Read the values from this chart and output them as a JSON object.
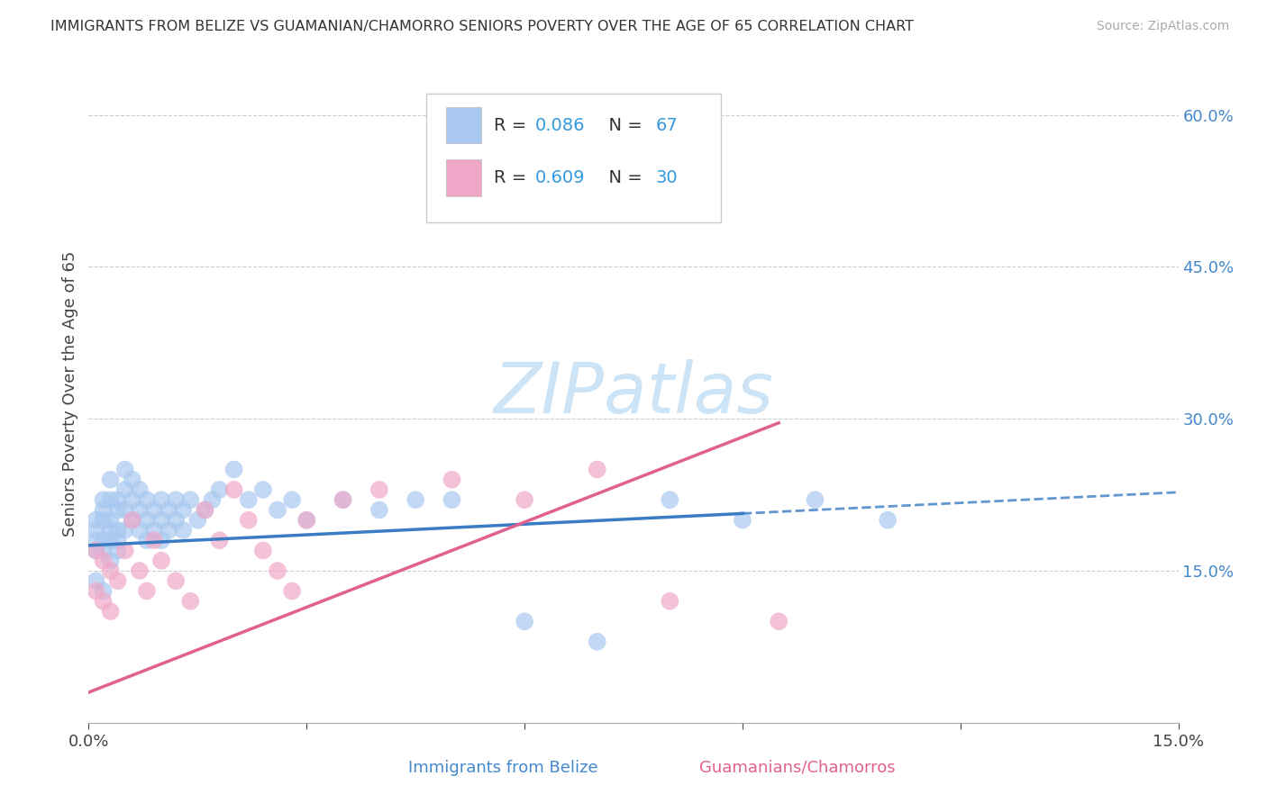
{
  "title": "IMMIGRANTS FROM BELIZE VS GUAMANIAN/CHAMORRO SENIORS POVERTY OVER THE AGE OF 65 CORRELATION CHART",
  "source": "Source: ZipAtlas.com",
  "ylabel": "Seniors Poverty Over the Age of 65",
  "xlabel_belize": "Immigrants from Belize",
  "xlabel_guam": "Guamanians/Chamorros",
  "xlim": [
    0.0,
    0.15
  ],
  "ylim": [
    0.0,
    0.65
  ],
  "R_belize": 0.086,
  "N_belize": 67,
  "R_guam": 0.609,
  "N_guam": 30,
  "color_belize": "#a8c8f0",
  "color_guam": "#f0a8c8",
  "line_color_belize": "#3a7cc4",
  "line_color_guam": "#e06090",
  "belize_x": [
    0.001,
    0.001,
    0.001,
    0.001,
    0.001,
    0.002,
    0.002,
    0.002,
    0.002,
    0.002,
    0.002,
    0.003,
    0.003,
    0.003,
    0.003,
    0.003,
    0.003,
    0.004,
    0.004,
    0.004,
    0.004,
    0.004,
    0.005,
    0.005,
    0.005,
    0.005,
    0.006,
    0.006,
    0.006,
    0.007,
    0.007,
    0.007,
    0.008,
    0.008,
    0.008,
    0.009,
    0.009,
    0.01,
    0.01,
    0.01,
    0.011,
    0.011,
    0.012,
    0.012,
    0.013,
    0.013,
    0.014,
    0.015,
    0.016,
    0.017,
    0.018,
    0.02,
    0.022,
    0.024,
    0.026,
    0.028,
    0.03,
    0.035,
    0.04,
    0.045,
    0.05,
    0.06,
    0.07,
    0.08,
    0.09,
    0.1,
    0.11
  ],
  "belize_y": [
    0.2,
    0.19,
    0.18,
    0.17,
    0.14,
    0.22,
    0.21,
    0.2,
    0.18,
    0.17,
    0.13,
    0.24,
    0.22,
    0.2,
    0.19,
    0.18,
    0.16,
    0.22,
    0.21,
    0.19,
    0.18,
    0.17,
    0.25,
    0.23,
    0.21,
    0.19,
    0.24,
    0.22,
    0.2,
    0.23,
    0.21,
    0.19,
    0.22,
    0.2,
    0.18,
    0.21,
    0.19,
    0.2,
    0.22,
    0.18,
    0.21,
    0.19,
    0.22,
    0.2,
    0.21,
    0.19,
    0.22,
    0.2,
    0.21,
    0.22,
    0.23,
    0.25,
    0.22,
    0.23,
    0.21,
    0.22,
    0.2,
    0.22,
    0.21,
    0.22,
    0.22,
    0.1,
    0.08,
    0.22,
    0.2,
    0.22,
    0.2
  ],
  "guam_x": [
    0.001,
    0.001,
    0.002,
    0.002,
    0.003,
    0.003,
    0.004,
    0.005,
    0.006,
    0.007,
    0.008,
    0.009,
    0.01,
    0.012,
    0.014,
    0.016,
    0.018,
    0.02,
    0.022,
    0.024,
    0.026,
    0.028,
    0.03,
    0.035,
    0.04,
    0.05,
    0.06,
    0.07,
    0.08,
    0.095
  ],
  "guam_y": [
    0.17,
    0.13,
    0.16,
    0.12,
    0.15,
    0.11,
    0.14,
    0.17,
    0.2,
    0.15,
    0.13,
    0.18,
    0.16,
    0.14,
    0.12,
    0.21,
    0.18,
    0.23,
    0.2,
    0.17,
    0.15,
    0.13,
    0.2,
    0.22,
    0.23,
    0.24,
    0.22,
    0.25,
    0.12,
    0.1
  ],
  "watermark": "ZIPatlas",
  "watermark_color": "#cce4f5",
  "watermark_fontsize": 56
}
